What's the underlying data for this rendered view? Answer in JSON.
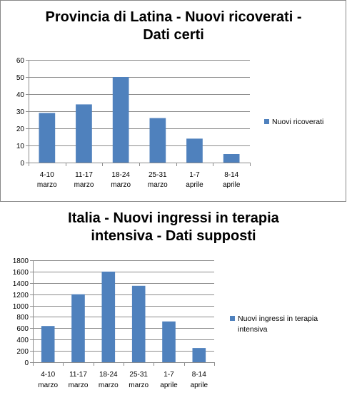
{
  "chart_data": [
    {
      "type": "bar",
      "title_lines": [
        "Provincia di Latina - Nuovi ricoverati -",
        "Dati certi"
      ],
      "categories": [
        [
          "4-10",
          "marzo"
        ],
        [
          "11-17",
          "marzo"
        ],
        [
          "18-24",
          "marzo"
        ],
        [
          "25-31",
          "marzo"
        ],
        [
          "1-7",
          "aprile"
        ],
        [
          "8-14",
          "aprile"
        ]
      ],
      "series": [
        {
          "name": [
            "Nuovi ricoverati"
          ],
          "values": [
            29,
            34,
            50,
            26,
            14,
            5
          ],
          "color": "#4F81BD"
        }
      ],
      "ylim": [
        0,
        60
      ],
      "yticks": [
        0,
        10,
        20,
        30,
        40,
        50,
        60
      ],
      "grid": true,
      "legend": "right",
      "xlabel": "",
      "ylabel": ""
    },
    {
      "type": "bar",
      "title_lines": [
        "Italia - Nuovi ingressi in terapia",
        "intensiva - Dati supposti"
      ],
      "categories": [
        [
          "4-10",
          "marzo"
        ],
        [
          "11-17",
          "marzo"
        ],
        [
          "18-24",
          "marzo"
        ],
        [
          "25-31",
          "marzo"
        ],
        [
          "1-7",
          "aprile"
        ],
        [
          "8-14",
          "aprile"
        ]
      ],
      "series": [
        {
          "name": [
            "Nuovi ingressi in terapia",
            "intensiva"
          ],
          "values": [
            640,
            1200,
            1600,
            1350,
            720,
            250
          ],
          "color": "#4F81BD"
        }
      ],
      "ylim": [
        0,
        1800
      ],
      "yticks": [
        0,
        200,
        400,
        600,
        800,
        1000,
        1200,
        1400,
        1600,
        1800
      ],
      "grid": true,
      "legend": "right",
      "xlabel": "",
      "ylabel": ""
    }
  ]
}
